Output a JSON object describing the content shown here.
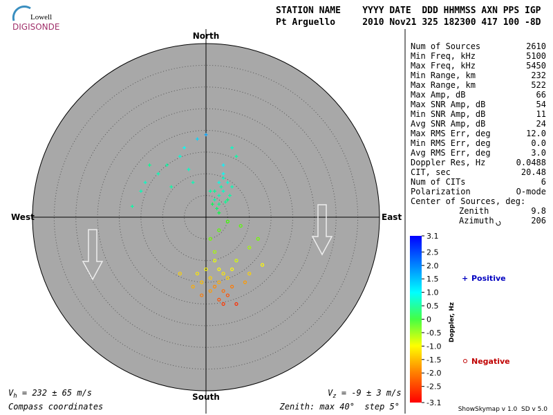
{
  "header": {
    "logo_top": "Lowell",
    "logo_bottom": "DIGISONDE",
    "line1": "STATION NAME    YYYY DATE  DDD HHMMSS AXN PPS IGP",
    "line2": "Pt Arguello     2010 Nov21 325 182300 417 100 -8D"
  },
  "stats": {
    "rows": [
      [
        "Num of Sources",
        "2610"
      ],
      [
        "Min Freq, kHz",
        "5100"
      ],
      [
        "Max Freq, kHz",
        "5450"
      ],
      [
        "Min Range, km",
        "232"
      ],
      [
        "Max Range, km",
        "522"
      ],
      [
        "Max Amp, dB",
        "66"
      ],
      [
        "Max SNR Amp, dB",
        "54"
      ],
      [
        "Min SNR Amp, dB",
        "11"
      ],
      [
        "Avg SNR Amp, dB",
        "24"
      ],
      [
        "Max RMS Err, deg",
        "12.0"
      ],
      [
        "Min RMS Err, deg",
        "0.0"
      ],
      [
        "Avg RMS Err, deg",
        "3.0"
      ],
      [
        "Doppler Res, Hz",
        "0.0488"
      ],
      [
        "CIT, sec",
        "20.48"
      ],
      [
        "Num of CITs",
        "6"
      ],
      [
        "Polarization",
        "O-mode"
      ]
    ],
    "center_title": "Center of Sources, deg:",
    "zenith_label": "Zenith",
    "zenith_value": "9.8",
    "azimuth_label": "Azimuth",
    "azimuth_value": "206"
  },
  "footer": {
    "vh_symbol": "V",
    "vh_sub": "h",
    "vh_text": " = 232 ± 65 m/s",
    "vz_symbol": "V",
    "vz_sub": "z",
    "vz_text": " = -9 ± 3 m/s",
    "coords": "Compass coordinates",
    "zenith": "Zenith: max 40°  step 5°",
    "version": "ShowSkymap v 1.0  SD v 5.0"
  },
  "chart_data": {
    "type": "polar-scatter",
    "directions": {
      "north": "North",
      "south": "South",
      "east": "East",
      "west": "West"
    },
    "rlim": [
      0,
      40
    ],
    "rticks": [
      5,
      10,
      15,
      20,
      25,
      30,
      35,
      40
    ],
    "x": [
      2,
      3,
      4,
      3.5,
      5,
      4,
      3,
      2.5,
      4.5,
      5.5,
      3,
      4,
      6,
      2,
      5,
      3,
      1.5,
      4,
      6,
      7,
      -11,
      -14,
      -9,
      -6,
      -15,
      -17,
      -13,
      -4,
      -2,
      -5,
      0,
      -8,
      1,
      -3,
      2,
      3,
      4,
      1,
      3,
      5,
      2,
      4,
      5,
      6,
      3,
      1,
      0,
      6,
      7,
      -1,
      2,
      1,
      3,
      5,
      8,
      10,
      12,
      13,
      -2,
      -3,
      -6,
      4,
      7,
      9,
      -1,
      10
    ],
    "y": [
      4,
      5,
      6,
      7,
      8,
      9,
      3,
      2,
      3.5,
      5,
      8,
      10,
      7,
      6,
      4,
      1,
      3,
      12,
      16,
      14,
      10,
      8,
      12,
      14,
      6,
      2.5,
      12,
      11,
      18,
      16,
      19,
      7,
      6,
      8,
      -10,
      -12,
      -13,
      -14,
      -15,
      -14,
      -16,
      -17,
      -18,
      -16,
      -19,
      -17,
      -12,
      -12,
      -10,
      -15,
      -8,
      -5,
      -3,
      -1,
      -2,
      -7,
      -5,
      -11,
      -13,
      -16,
      -13,
      -20,
      -20,
      -15,
      -18,
      -13
    ],
    "doppler": [
      1.0,
      1.1,
      1.2,
      1.0,
      1.3,
      1.2,
      0.8,
      0.6,
      0.9,
      1.0,
      1.4,
      1.5,
      1.1,
      0.9,
      0.7,
      0.4,
      0.5,
      1.6,
      1.2,
      1.0,
      1.1,
      1.2,
      1.0,
      1.3,
      1.1,
      1.0,
      0.9,
      1.2,
      1.8,
      1.5,
      2.1,
      1.0,
      1.0,
      1.1,
      -0.9,
      -1.0,
      -1.1,
      -1.2,
      -1.4,
      -1.2,
      -1.6,
      -1.8,
      -2.0,
      -1.7,
      -2.0,
      -1.5,
      -1.0,
      -1.0,
      -0.8,
      -1.3,
      -0.6,
      -0.4,
      -0.3,
      -0.2,
      -0.3,
      -0.6,
      -0.4,
      -1.0,
      -1.1,
      -1.4,
      -1.2,
      -2.2,
      -2.3,
      -1.5,
      -1.7,
      -1.2
    ],
    "colorbar": {
      "label": "Doppler, Hz",
      "lim": [
        -3.1,
        3.1
      ],
      "ticks": [
        3.1,
        2.5,
        {
          "value": 2,
          "label": "2.0"
        },
        1.5,
        {
          "value": 1,
          "label": "1.0"
        },
        0.5,
        0,
        -0.5,
        {
          "value": -1,
          "label": "-1.0"
        },
        -1.5,
        {
          "value": -2,
          "label": "-2.0"
        },
        -2.5,
        -3.1
      ]
    },
    "legend": {
      "positive": "Positive",
      "negative": "Negative"
    }
  }
}
